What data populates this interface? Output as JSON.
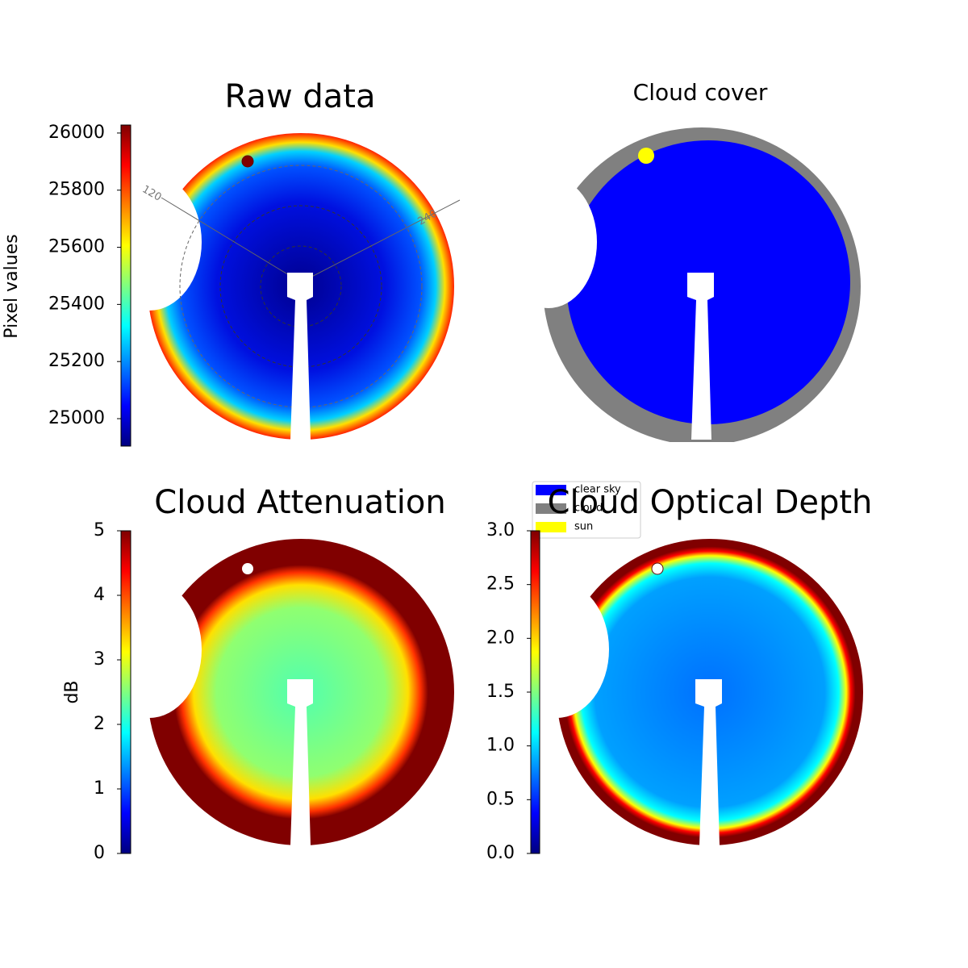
{
  "chart_data": [
    {
      "type": "image",
      "title": "Raw data",
      "ylabel": "Pixel values",
      "colormap": "jet",
      "ylim": [
        24904,
        26028
      ],
      "yticks": [
        25000,
        25200,
        25400,
        25600,
        25800,
        26000
      ],
      "annotations": [
        "120",
        "240"
      ]
    },
    {
      "type": "image",
      "title": "Cloud cover",
      "legend": "lower left",
      "series": [
        {
          "name": "clear sky",
          "color": "#0000ff"
        },
        {
          "name": "cloud",
          "color": "#808080"
        },
        {
          "name": "sun",
          "color": "#ffff00"
        }
      ]
    },
    {
      "type": "image",
      "title": "Cloud Attenuation",
      "ylabel": "dB",
      "colormap": "jet",
      "ylim": [
        0,
        5
      ],
      "yticks": [
        0,
        1,
        2,
        3,
        4,
        5
      ]
    },
    {
      "type": "image",
      "title": "Cloud Optical Depth",
      "colormap": "jet",
      "ylim": [
        0,
        3
      ],
      "yticks": [
        {
          "value": 0,
          "label": "0.0"
        },
        0.5,
        {
          "value": 1,
          "label": "1.0"
        },
        1.5,
        {
          "value": 2,
          "label": "2.0"
        },
        2.5,
        {
          "value": 3,
          "label": "3.0"
        }
      ]
    }
  ]
}
